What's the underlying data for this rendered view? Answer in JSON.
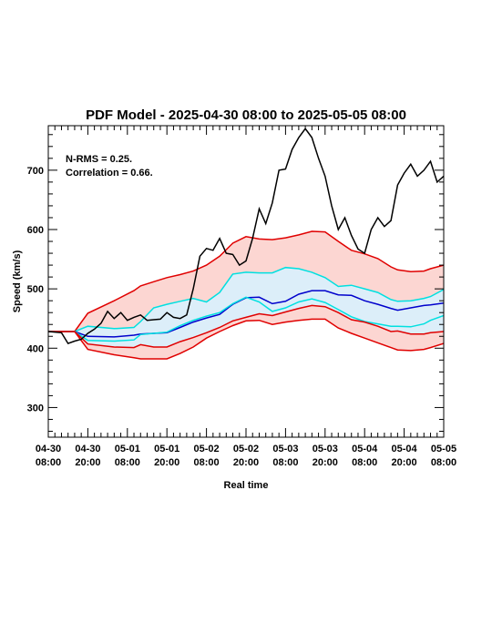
{
  "chart_data": {
    "type": "line",
    "title": "PDF Model - 2025-04-30 08:00 to 2025-05-05 08:00",
    "xlabel": "Real time",
    "ylabel": "Speed (km/s)",
    "xlim": [
      "04-30 08:00",
      "05-05 08:00"
    ],
    "ylim": [
      250,
      775
    ],
    "yticks": [
      300,
      400,
      500,
      600,
      700
    ],
    "xtick_labels": [
      [
        "04-30",
        "08:00"
      ],
      [
        "04-30",
        "20:00"
      ],
      [
        "05-01",
        "08:00"
      ],
      [
        "05-01",
        "20:00"
      ],
      [
        "05-02",
        "08:00"
      ],
      [
        "05-02",
        "20:00"
      ],
      [
        "05-03",
        "08:00"
      ],
      [
        "05-03",
        "20:00"
      ],
      [
        "05-04",
        "08:00"
      ],
      [
        "05-04",
        "20:00"
      ],
      [
        "05-05",
        "08:00"
      ]
    ],
    "annotations": [
      "N-RMS = 0.25.",
      "Correlation = 0.66."
    ],
    "colors": {
      "observed": "#000000",
      "median": "#0000cc",
      "inner_band_line": "#00e0e0",
      "inner_band_fill": "#dceef9",
      "outer_band_line": "#e00000",
      "outer_band_fill": "#fcd6d2"
    },
    "x_hours": [
      0,
      8,
      12,
      20,
      26,
      28,
      32,
      36,
      40,
      44,
      48,
      52,
      56,
      60,
      64,
      68,
      72,
      76,
      80,
      84,
      88,
      92,
      96,
      100,
      104,
      106,
      110,
      114,
      116,
      120
    ],
    "series": [
      {
        "values": [
          428,
          428,
          437,
          433,
          435,
          445,
          468,
          474,
          479,
          484,
          478,
          494,
          525,
          528,
          527,
          527,
          536,
          534,
          528,
          519,
          504,
          506,
          500,
          494,
          482,
          479,
          480,
          484,
          487,
          499
        ]
      },
      {
        "values": [
          428,
          428,
          420,
          419,
          422,
          424,
          425,
          426,
          435,
          444,
          451,
          457,
          474,
          485,
          486,
          475,
          479,
          491,
          497,
          497,
          490,
          489,
          480,
          474,
          467,
          464,
          468,
          472,
          473,
          476
        ]
      },
      {
        "values": [
          428,
          428,
          413,
          412,
          414,
          423,
          425,
          427,
          438,
          447,
          454,
          460,
          475,
          486,
          478,
          462,
          468,
          478,
          483,
          477,
          465,
          453,
          445,
          441,
          437,
          437,
          436,
          441,
          447,
          455
        ]
      },
      {
        "values": [
          428,
          428,
          407,
          402,
          401,
          406,
          402,
          402,
          411,
          418,
          426,
          435,
          446,
          452,
          458,
          455,
          461,
          467,
          472,
          470,
          460,
          448,
          444,
          437,
          428,
          429,
          424,
          424,
          426,
          428
        ]
      },
      {
        "values": [
          428,
          428,
          398,
          389,
          384,
          382,
          382,
          382,
          391,
          402,
          417,
          428,
          438,
          446,
          447,
          440,
          444,
          447,
          449,
          449,
          434,
          425,
          417,
          409,
          401,
          397,
          396,
          398,
          401,
          408
        ]
      }
    ],
    "outer_band": {
      "upper": [
        428,
        428,
        459,
        480,
        497,
        505,
        512,
        519,
        524,
        530,
        540,
        555,
        577,
        588,
        584,
        583,
        586,
        591,
        597,
        596,
        580,
        565,
        559,
        551,
        537,
        532,
        529,
        530,
        534,
        540
      ],
      "lower": [
        428,
        428,
        398,
        389,
        384,
        382,
        382,
        382,
        391,
        402,
        417,
        428,
        438,
        446,
        447,
        440,
        444,
        447,
        449,
        449,
        434,
        425,
        417,
        409,
        401,
        397,
        396,
        398,
        401,
        408
      ]
    },
    "inner_band": {
      "upper": [
        428,
        428,
        437,
        433,
        435,
        445,
        468,
        474,
        479,
        484,
        478,
        494,
        525,
        528,
        527,
        527,
        536,
        534,
        528,
        519,
        504,
        506,
        500,
        494,
        482,
        479,
        480,
        484,
        487,
        499
      ],
      "lower": [
        428,
        428,
        407,
        402,
        401,
        406,
        402,
        402,
        411,
        418,
        426,
        435,
        446,
        452,
        458,
        455,
        461,
        467,
        472,
        470,
        460,
        448,
        444,
        437,
        428,
        429,
        424,
        424,
        426,
        428
      ]
    },
    "observed": {
      "x_hours": [
        0,
        4,
        6,
        8,
        10,
        12,
        14,
        16,
        18,
        20,
        22,
        24,
        26,
        28,
        30,
        32,
        34,
        36,
        38,
        40,
        42,
        44,
        46,
        48,
        50,
        52,
        54,
        56,
        58,
        60,
        62,
        64,
        66,
        68,
        70,
        72,
        74,
        76,
        78,
        80,
        82,
        84,
        86,
        88,
        90,
        92,
        94,
        96,
        98,
        100,
        102,
        104,
        106,
        108,
        110,
        112,
        114,
        116,
        118,
        120
      ],
      "values": [
        428,
        426,
        408,
        412,
        415,
        425,
        432,
        442,
        462,
        450,
        460,
        447,
        452,
        456,
        447,
        448,
        449,
        460,
        452,
        450,
        456,
        500,
        555,
        568,
        565,
        585,
        560,
        558,
        540,
        547,
        585,
        635,
        610,
        645,
        700,
        702,
        735,
        755,
        770,
        755,
        720,
        690,
        640,
        600,
        620,
        590,
        567,
        560,
        600,
        620,
        605,
        615,
        675,
        695,
        710,
        690,
        700,
        715,
        680,
        690
      ]
    }
  }
}
